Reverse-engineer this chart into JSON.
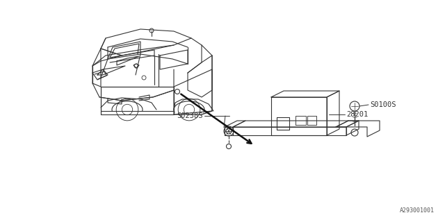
{
  "bg_color": "#ffffff",
  "line_color": "#333333",
  "ref_code": "A293001001",
  "figsize": [
    6.4,
    3.2
  ],
  "dpi": 100,
  "car_color": "#444444",
  "unit_color": "#555555",
  "label_color": "#333333",
  "arrow_color": "#111111",
  "label_28201": "28201",
  "label_S0238": "S0238S",
  "label_S0100": "S0100S",
  "label_S0238_display": "S0238S",
  "label_S0100_display": "S0100S"
}
